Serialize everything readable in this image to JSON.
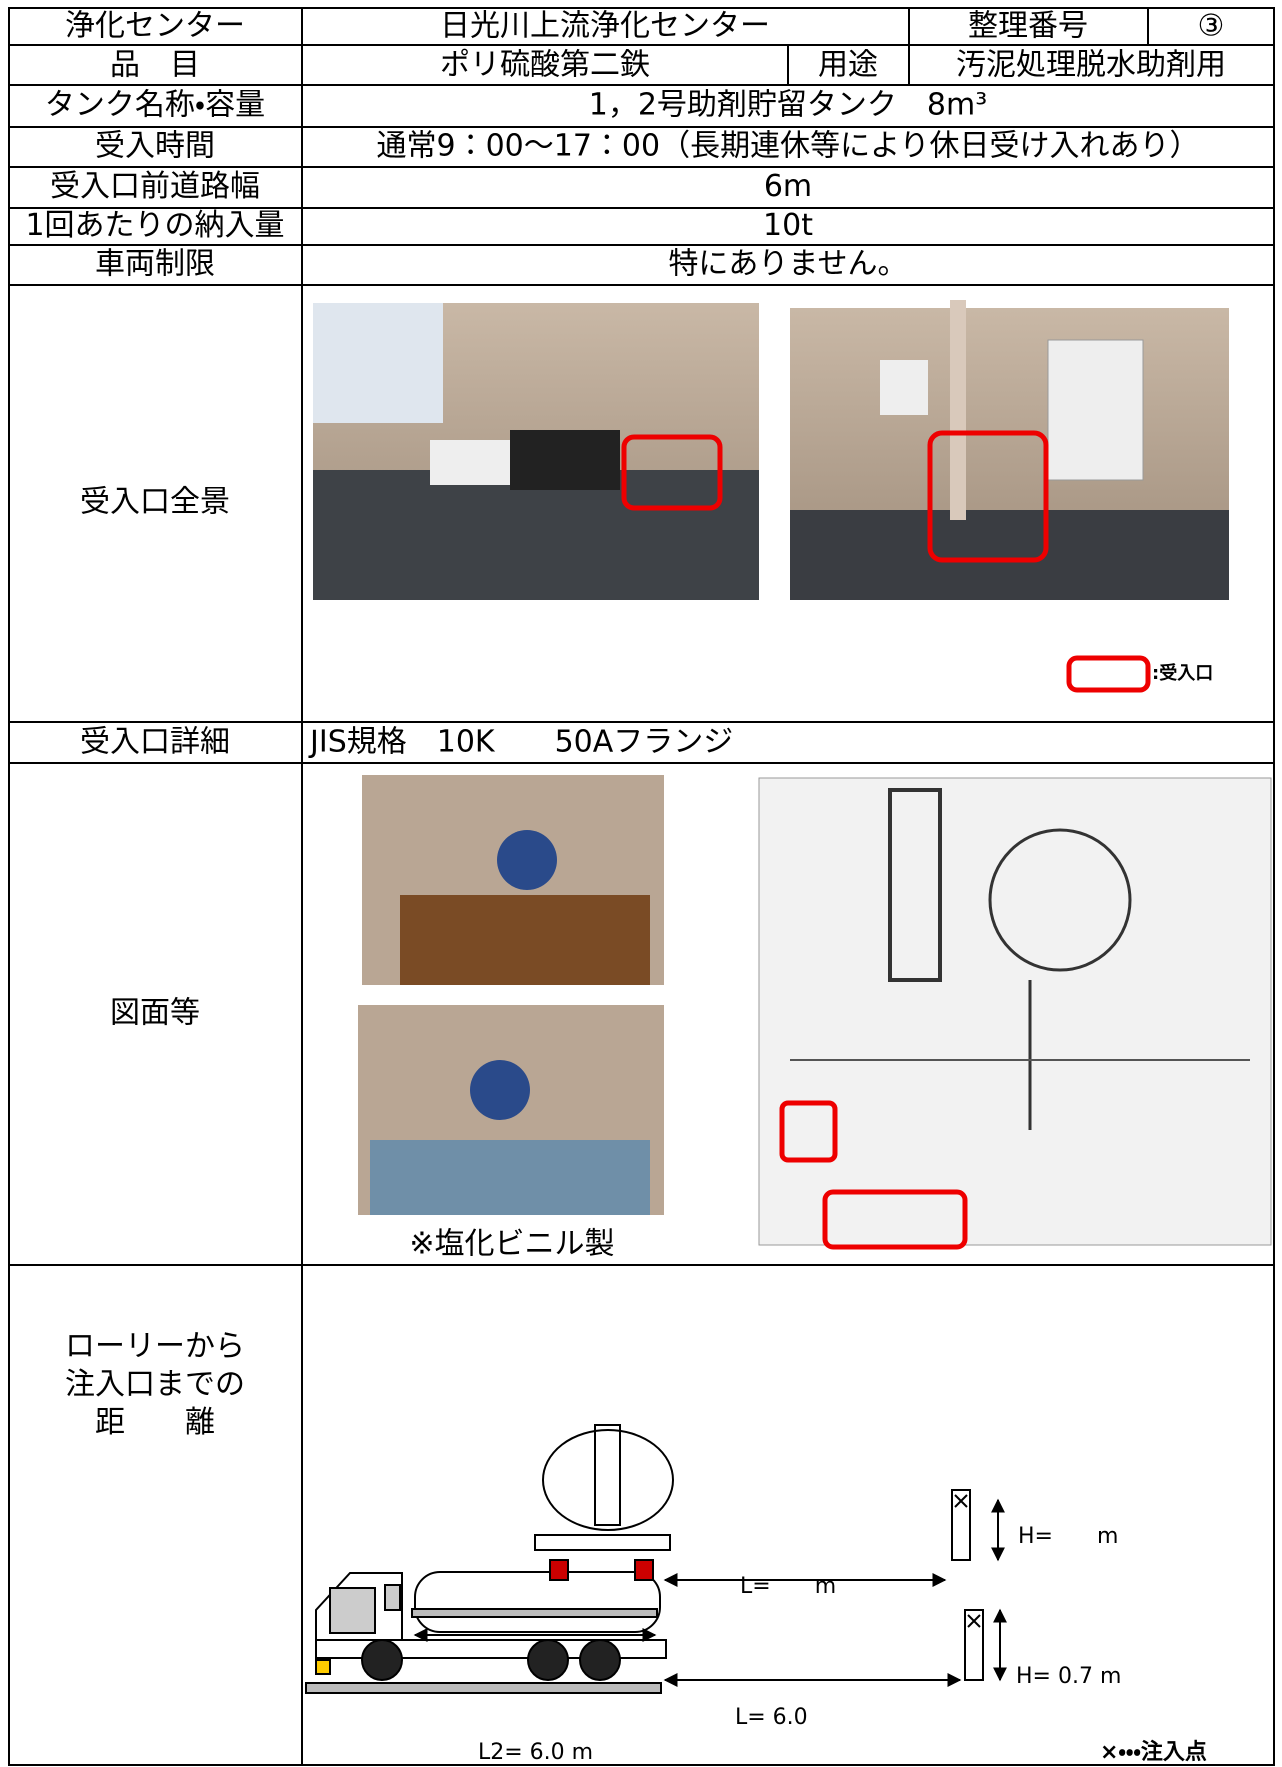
{
  "header": {
    "center_label": "浄化センター",
    "center_name": "日光川上流浄化センター",
    "number_label": "整理番号",
    "number": "③"
  },
  "item": {
    "label": "品　目",
    "value": "ポリ硫酸第二鉄",
    "use_label": "用途",
    "use": "汚泥処理脱水助剤用"
  },
  "fields": [
    {
      "label": "タンク名称・容量",
      "value": "1，2号助剤貯留タンク　8m³"
    },
    {
      "label": "受入時間",
      "value": "通常9：00～17：00（長期連休等により休日受け入れあり）"
    },
    {
      "label": "受入口前道路幅",
      "value": "6m"
    },
    {
      "label": "1回あたりの納入量",
      "value": "10t"
    },
    {
      "label": "車両制限",
      "value": "特にありません。"
    }
  ],
  "overview": {
    "label": "受入口全景",
    "legend": ":受入口"
  },
  "detail": {
    "label": "受入口詳細",
    "value": "JIS規格　10K　　50Aフランジ"
  },
  "drawings": {
    "label": "図面等",
    "caption": "※塩化ビニル製"
  },
  "distance": {
    "label": "ローリーから\n注入口までの\n距　　離",
    "h_top": "H=　　m",
    "l_top": "L=　　m",
    "h_bottom": "H= 0.7 m",
    "l_bottom": "L=  6.0",
    "l2": "L2= 6.0 m",
    "legend": "×・・・注入点"
  }
}
